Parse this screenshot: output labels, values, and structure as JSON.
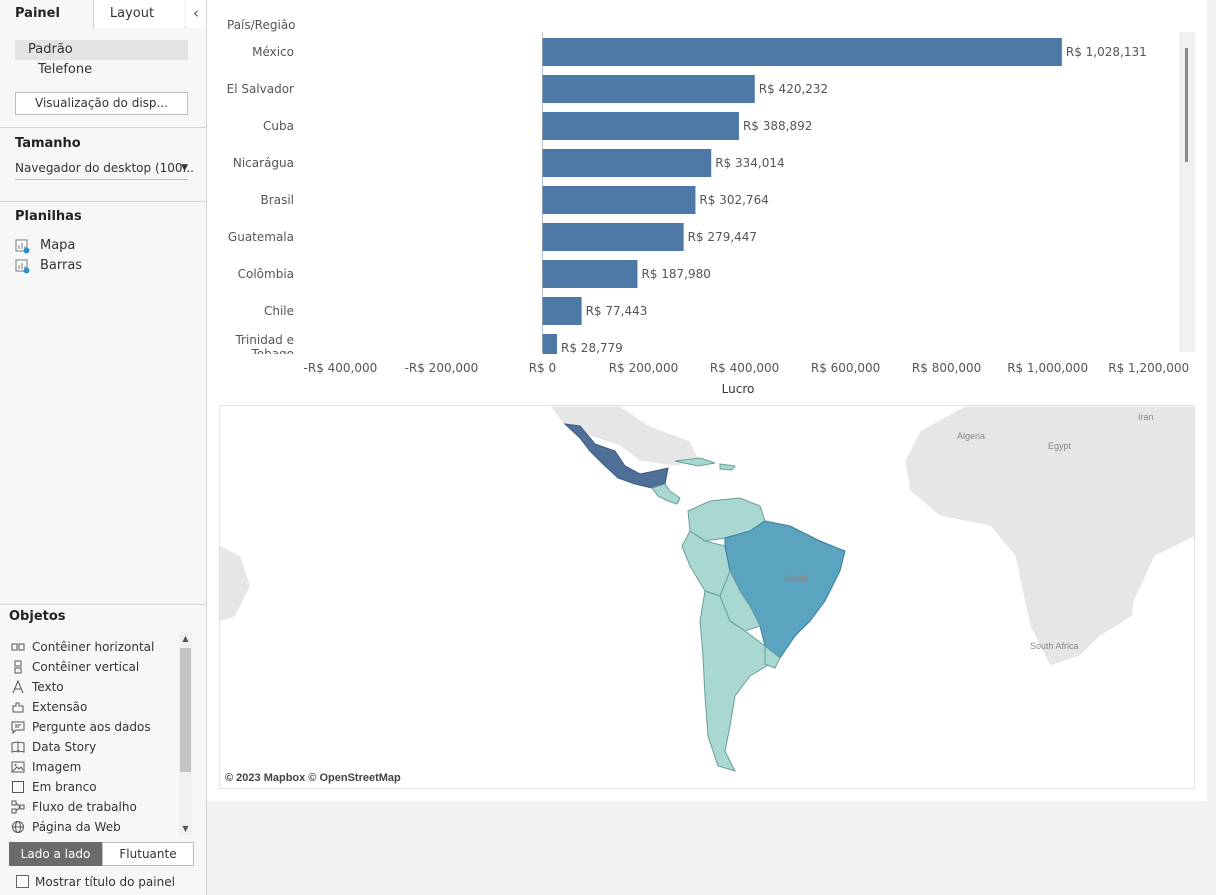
{
  "sidebar": {
    "tabs": {
      "painel": "Painel",
      "layout": "Layout"
    },
    "collapse_glyph": "‹",
    "devices": {
      "padrao": "Padrão",
      "telefone": "Telefone"
    },
    "preview_button": "Visualização do disp...",
    "size": {
      "title": "Tamanho",
      "value": "Navegador do desktop (100..."
    },
    "sheets": {
      "title": "Planilhas",
      "items": [
        "Mapa",
        "Barras"
      ]
    },
    "objects": {
      "title": "Objetos",
      "items": [
        {
          "label": "Contêiner horizontal",
          "icon": "horizontal-container-icon"
        },
        {
          "label": "Contêiner vertical",
          "icon": "vertical-container-icon"
        },
        {
          "label": "Texto",
          "icon": "text-icon"
        },
        {
          "label": "Extensão",
          "icon": "extension-icon"
        },
        {
          "label": "Pergunte aos dados",
          "icon": "ask-data-icon"
        },
        {
          "label": "Data Story",
          "icon": "data-story-icon"
        },
        {
          "label": "Imagem",
          "icon": "image-icon"
        },
        {
          "label": "Em branco",
          "icon": "blank-icon"
        },
        {
          "label": "Fluxo de trabalho",
          "icon": "workflow-icon"
        },
        {
          "label": "Página da Web",
          "icon": "web-page-icon"
        }
      ]
    },
    "layout_toggle": {
      "tiled": "Lado a lado",
      "floating": "Flutuante"
    },
    "show_title": "Mostrar título do painel"
  },
  "chart_data": {
    "type": "bar",
    "orientation": "horizontal",
    "row_header": "País/Região",
    "xlabel": "Lucro",
    "categories": [
      "México",
      "El Salvador",
      "Cuba",
      "Nicarágua",
      "Brasil",
      "Guatemala",
      "Colômbia",
      "Chile",
      "Trinidad e Tobago"
    ],
    "values": [
      1028131,
      420232,
      388892,
      334014,
      302764,
      279447,
      187980,
      77443,
      28779
    ],
    "value_labels": [
      "R$ 1,028,131",
      "R$ 420,232",
      "R$ 388,892",
      "R$ 334,014",
      "R$ 302,764",
      "R$ 279,447",
      "R$ 187,980",
      "R$ 77,443",
      "R$ 28,779"
    ],
    "xlim": [
      -480000,
      1260000
    ],
    "ticks": [
      -400000,
      -200000,
      0,
      200000,
      400000,
      600000,
      800000,
      1000000,
      1200000
    ],
    "tick_labels": [
      "-R$ 400,000",
      "-R$ 200,000",
      "R$ 0",
      "R$ 200,000",
      "R$ 400,000",
      "R$ 600,000",
      "R$ 800,000",
      "R$ 1,000,000",
      "R$ 1,200,000"
    ],
    "bar_color": "#4e79a7"
  },
  "map": {
    "attribution": "© 2023 Mapbox © OpenStreetMap",
    "labels": [
      "Algeria",
      "Egypt",
      "Iran",
      "South Africa",
      "Brasil"
    ],
    "colors": {
      "high": "#4e6f98",
      "mid": "#5aa4c0",
      "low": "#a9d8d2",
      "land": "#e6e6e6"
    }
  }
}
